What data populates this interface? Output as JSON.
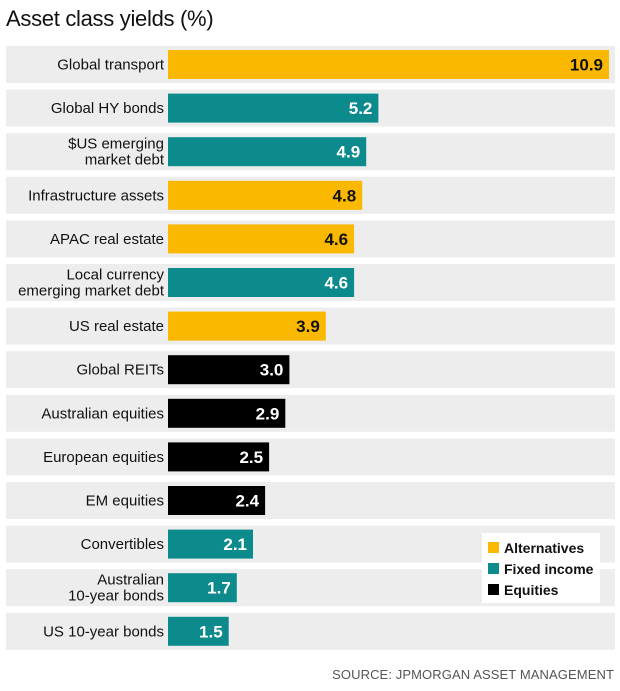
{
  "title": "Asset class yields (%)",
  "source": "SOURCE: JPMORGAN ASSET MANAGEMENT",
  "legend": [
    {
      "label": "Alternatives",
      "color": "#fbb800"
    },
    {
      "label": "Fixed income",
      "color": "#0d8a8c"
    },
    {
      "label": "Equities",
      "color": "#000000"
    }
  ],
  "chart_data": {
    "type": "bar",
    "orientation": "horizontal",
    "title": "Asset class yields (%)",
    "categories": [
      [
        "Global transport"
      ],
      [
        "Global HY bonds"
      ],
      [
        "$US emerging",
        "market debt"
      ],
      [
        "Infrastructure assets"
      ],
      [
        "APAC real estate"
      ],
      [
        "Local currency",
        "emerging market debt"
      ],
      [
        "US real estate"
      ],
      [
        "Global REITs"
      ],
      [
        "Australian equities"
      ],
      [
        "European equities"
      ],
      [
        "EM equities"
      ],
      [
        "Convertibles"
      ],
      [
        "Australian",
        "10-year bonds"
      ],
      [
        "US 10-year bonds"
      ]
    ],
    "values": [
      10.9,
      5.2,
      4.9,
      4.8,
      4.6,
      4.6,
      3.9,
      3.0,
      2.9,
      2.5,
      2.4,
      2.1,
      1.7,
      1.5
    ],
    "value_labels": [
      "10.9",
      "5.2",
      "4.9",
      "4.8",
      "4.6",
      "4.6",
      "3.9",
      "3.0",
      "2.9",
      "2.5",
      "2.4",
      "2.1",
      "1.7",
      "1.5"
    ],
    "groups": [
      "Alternatives",
      "Fixed income",
      "Fixed income",
      "Alternatives",
      "Alternatives",
      "Fixed income",
      "Alternatives",
      "Equities",
      "Equities",
      "Equities",
      "Equities",
      "Fixed income",
      "Fixed income",
      "Fixed income"
    ],
    "xlim": [
      0,
      10.9
    ],
    "grid": false,
    "legend_position": "bottom-right"
  }
}
